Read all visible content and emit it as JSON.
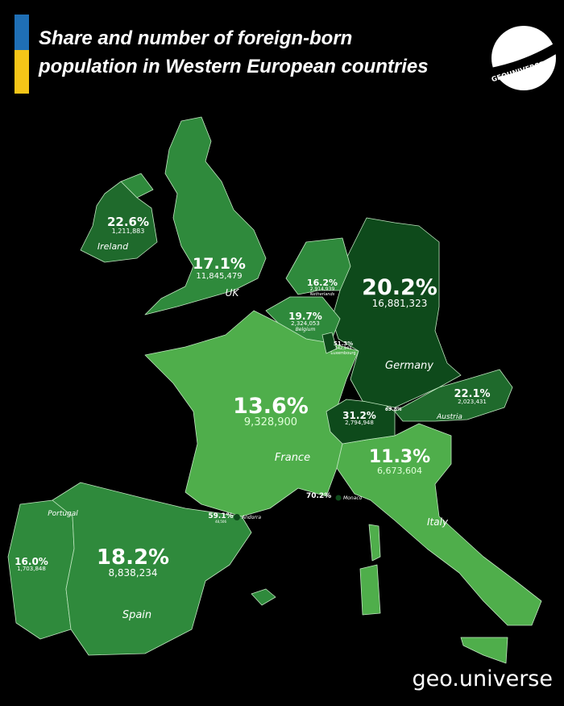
{
  "title_line1": "Share and number of foreign-born",
  "title_line2": "population in Western European countries",
  "logo_text": "GEOUNIVERSE",
  "credit": "geo.universe",
  "colors": {
    "flag_blue": "#1f6fb5",
    "flag_yellow": "#f5c518",
    "light": "#4fae4b",
    "medium": "#2f8a3c",
    "dark": "#1f6a2c",
    "darkest": "#0e4a1b",
    "background": "#000000"
  },
  "countries": [
    {
      "name": "Ireland",
      "share": "22.6%",
      "count": "1,211,883"
    },
    {
      "name": "UK",
      "share": "17.1%",
      "count": "11,845,479"
    },
    {
      "name": "Netherlands",
      "share": "16.2%",
      "count": "2,914,939"
    },
    {
      "name": "Belgium",
      "share": "19.7%",
      "count": "2,324,053"
    },
    {
      "name": "Luxembourg",
      "share": "51.3%",
      "count": "342,943"
    },
    {
      "name": "Germany",
      "share": "20.2%",
      "count": "16,881,323"
    },
    {
      "name": "France",
      "share": "13.6%",
      "count": "9,328,900"
    },
    {
      "name": "Switzerland",
      "share": "31.2%",
      "count": "2,794,948"
    },
    {
      "name": "Liechtenstein",
      "share": "69.8%"
    },
    {
      "name": "Austria",
      "share": "22.1%",
      "count": "2,023,431"
    },
    {
      "name": "Italy",
      "share": "11.3%",
      "count": "6,673,604"
    },
    {
      "name": "Monaco",
      "share": "70.2%"
    },
    {
      "name": "Andorra",
      "share": "59.1%",
      "count": "48,506"
    },
    {
      "name": "Portugal",
      "share": "16.0%",
      "count": "1,703,848"
    },
    {
      "name": "Spain",
      "share": "18.2%",
      "count": "8,838,234"
    }
  ]
}
